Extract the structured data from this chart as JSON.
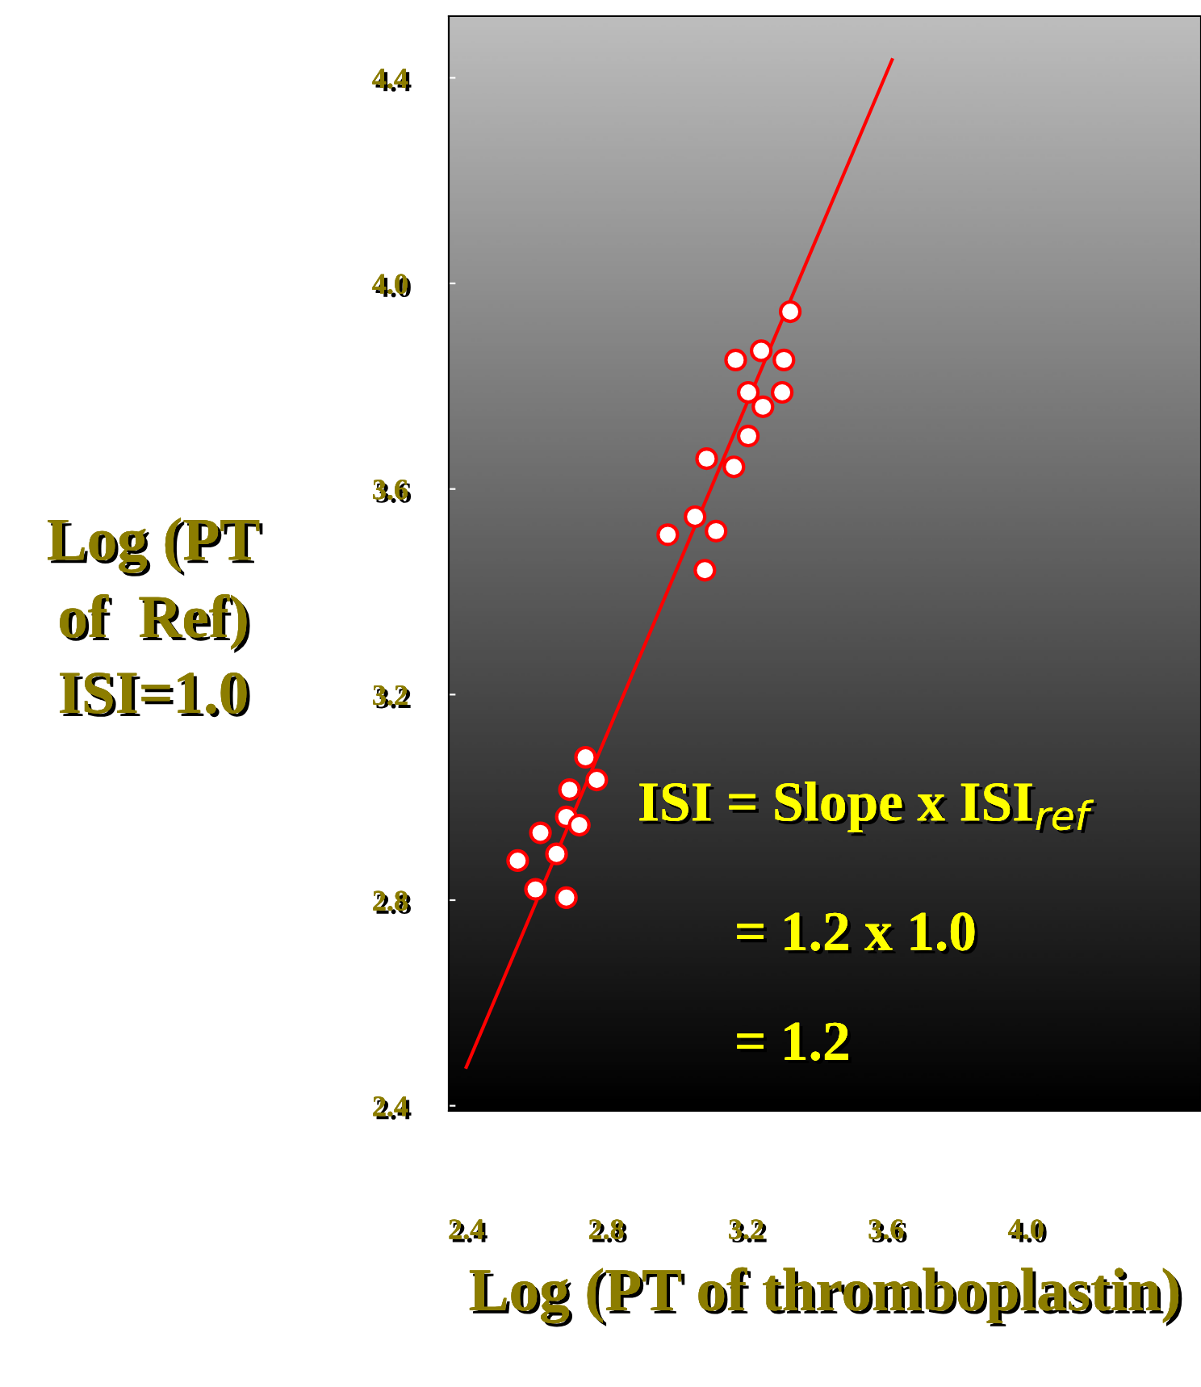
{
  "chart_data": {
    "type": "scatter",
    "xlabel": "Log (PT of thromboplastin)",
    "ylabel": "Log (PT\nof  Ref)\nISI=1.0",
    "xlim": [
      2.35,
      4.5
    ],
    "ylim": [
      2.39,
      4.52
    ],
    "xticks": [
      2.4,
      2.8,
      3.2,
      3.6,
      {
        "value": 4,
        "label": "4.0"
      }
    ],
    "yticks": [
      2.4,
      2.8,
      3.2,
      3.6,
      {
        "value": 4,
        "label": "4.0"
      },
      4.4
    ],
    "grid": false,
    "marker": "circle",
    "series": [
      {
        "color": "#ff0000",
        "x": [
          3.326,
          3.243,
          3.17,
          3.308,
          3.206,
          3.303,
          3.248,
          3.206,
          3.087,
          3.165,
          3.054,
          2.976,
          3.114,
          3.082,
          2.741,
          2.773,
          2.695,
          2.686,
          2.723,
          2.612,
          2.658,
          2.547,
          2.598,
          2.686
        ],
        "values": [
          3.945,
          3.869,
          3.851,
          3.851,
          3.788,
          3.788,
          3.76,
          3.703,
          3.659,
          3.643,
          3.546,
          3.511,
          3.518,
          3.442,
          3.078,
          3.034,
          3.015,
          2.962,
          2.946,
          2.931,
          2.89,
          2.877,
          2.821,
          2.805
        ]
      },
      {
        "type": "line",
        "marker": "none",
        "color": "#ff0000",
        "x": [
          2.4,
          3.617
        ],
        "values": [
          2.475,
          4.435
        ]
      }
    ],
    "annotations": [
      "ISI = Slope x ISI$_{ref}$",
      "= 1.2 x 1.0",
      "= 1.2"
    ]
  }
}
